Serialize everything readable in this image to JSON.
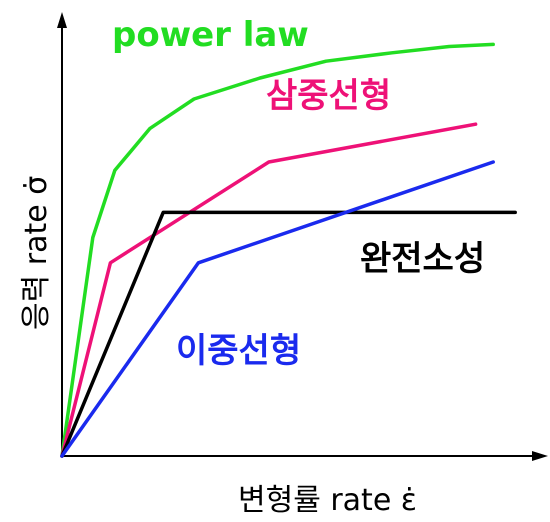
{
  "chart_data": {
    "type": "line",
    "title": "",
    "xlabel": "변형률 rate ε̇",
    "ylabel": "응력 rate σ̇",
    "xlim": [
      0,
      100
    ],
    "ylim": [
      0,
      100
    ],
    "grid": false,
    "legend": "none",
    "series": [
      {
        "name": "power law",
        "color": "#22dd22",
        "x": [
          0,
          7,
          12,
          20,
          30,
          45,
          60,
          75,
          88,
          98
        ],
        "y": [
          0,
          52,
          68,
          78,
          85,
          90,
          94,
          96,
          97.5,
          98
        ]
      },
      {
        "name": "삼중선형",
        "color": "#ee1177",
        "x": [
          0,
          11,
          47,
          94
        ],
        "y": [
          0,
          46,
          70,
          79
        ]
      },
      {
        "name": "완전소성",
        "color": "#000000",
        "x": [
          0,
          23,
          103
        ],
        "y": [
          0,
          58,
          58
        ]
      },
      {
        "name": "이중선형",
        "color": "#1a2aee",
        "x": [
          0,
          31,
          98
        ],
        "y": [
          0,
          46,
          70
        ]
      }
    ]
  }
}
